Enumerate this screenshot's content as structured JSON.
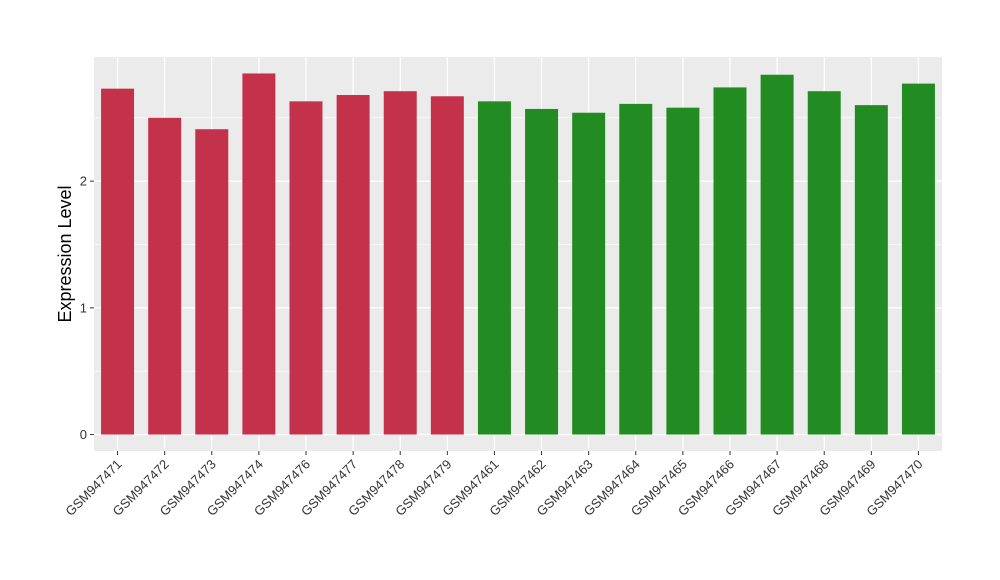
{
  "chart_data": {
    "type": "bar",
    "title": "",
    "xlabel": "",
    "ylabel": "Expression Level",
    "ylim": [
      -0.13,
      2.98
    ],
    "yticks": [
      0,
      1,
      2
    ],
    "grid": true,
    "legend": "none",
    "panel_background": "#ebebeb",
    "categories": [
      "GSM947471",
      "GSM947472",
      "GSM947473",
      "GSM947474",
      "GSM947476",
      "GSM947477",
      "GSM947478",
      "GSM947479",
      "GSM947461",
      "GSM947462",
      "GSM947463",
      "GSM947464",
      "GSM947465",
      "GSM947466",
      "GSM947467",
      "GSM947468",
      "GSM947469",
      "GSM947470"
    ],
    "values": [
      2.73,
      2.5,
      2.41,
      2.85,
      2.63,
      2.68,
      2.71,
      2.67,
      2.63,
      2.57,
      2.54,
      2.61,
      2.58,
      2.74,
      2.84,
      2.71,
      2.6,
      2.77
    ],
    "colors": [
      "#c4314b",
      "#c4314b",
      "#c4314b",
      "#c4314b",
      "#c4314b",
      "#c4314b",
      "#c4314b",
      "#c4314b",
      "#228b22",
      "#228b22",
      "#228b22",
      "#228b22",
      "#228b22",
      "#228b22",
      "#228b22",
      "#228b22",
      "#228b22",
      "#228b22"
    ]
  }
}
